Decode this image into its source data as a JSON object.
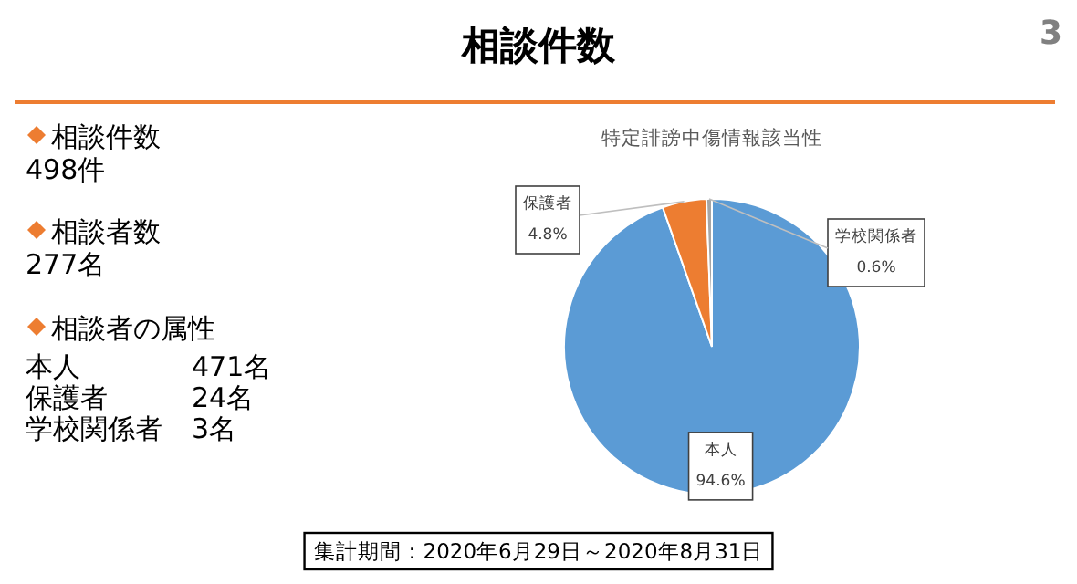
{
  "chart_data": [
    {
      "type": "other",
      "title": "相談件数",
      "annotations": [
        "相談件数",
        "498件",
        "相談者数",
        "277名",
        "相談者の属性",
        "本人",
        "471名",
        "保護者",
        "24名",
        "学校関係者",
        "3名",
        "集計期間：2020年6月29日～2020年8月31日",
        "3"
      ]
    },
    {
      "type": "pie",
      "title": "特定誹謗中傷情報該当性",
      "categories": [
        "本人",
        "保護者",
        "学校関係者"
      ],
      "values": [
        94.6,
        4.8,
        0.6
      ],
      "colors": [
        "#5b9bd5",
        "#ed7d31",
        "#a5a5a5"
      ],
      "value_labels": [
        "94.6%",
        "4.8%",
        "0.6%"
      ]
    }
  ]
}
